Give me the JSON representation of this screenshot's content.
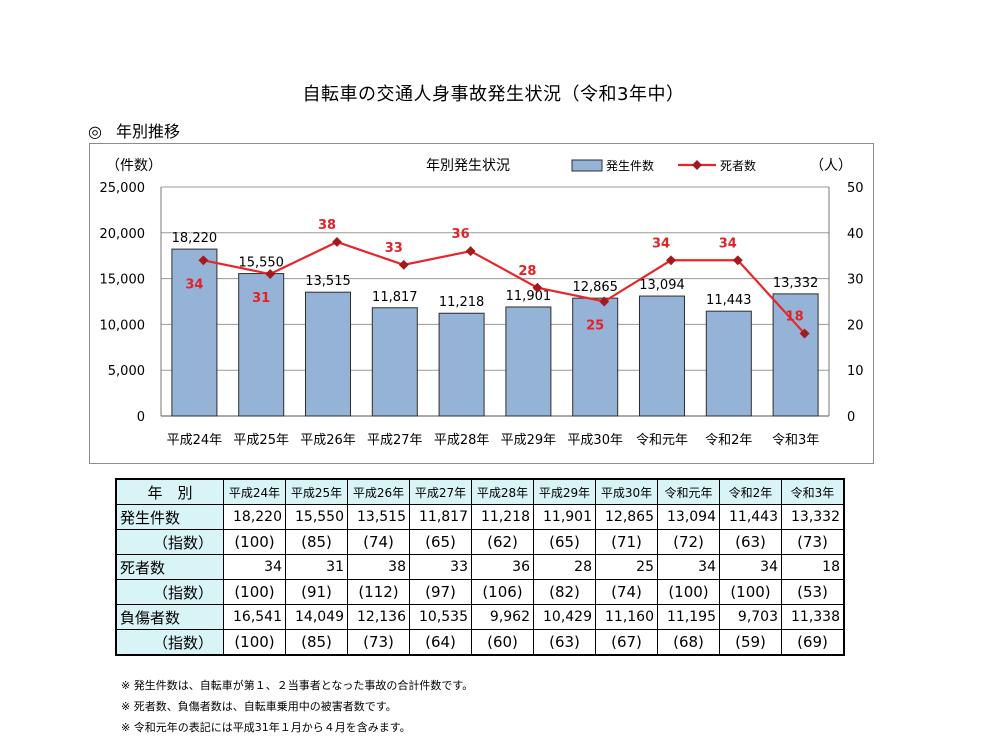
{
  "page_title": "自転車の交通人身事故発生状況（令和3年中）",
  "section": {
    "mark": "◎",
    "title": "年別推移"
  },
  "chart_data": {
    "type": "bar+line",
    "title": "年別発生状況",
    "left_axis_label": "（件数）",
    "right_axis_label": "（人）",
    "left_ticks": [
      "25,000",
      "20,000",
      "15,000",
      "10,000",
      "5,000",
      "0"
    ],
    "right_ticks": [
      "50",
      "40",
      "30",
      "20",
      "10",
      "0"
    ],
    "ylim_left": [
      0,
      25000
    ],
    "ylim_right": [
      0,
      50
    ],
    "legend_position": "top-right",
    "colors": {
      "bar_fill": "#95b3d7",
      "bar_stroke": "#2d2d2d",
      "line": "#e8262a",
      "marker": "#a01a1e",
      "death_label": "#e32228"
    },
    "categories": [
      "平成24年",
      "平成25年",
      "平成26年",
      "平成27年",
      "平成28年",
      "平成29年",
      "平成30年",
      "令和元年",
      "令和2年",
      "令和3年"
    ],
    "series": [
      {
        "name": "発生件数",
        "axis": "left",
        "kind": "bar",
        "values": [
          18220,
          15550,
          13515,
          11817,
          11218,
          11901,
          12865,
          13094,
          11443,
          13332
        ],
        "labels": [
          "18,220",
          "15,550",
          "13,515",
          "11,817",
          "11,218",
          "11,901",
          "12,865",
          "13,094",
          "11,443",
          "13,332"
        ]
      },
      {
        "name": "死者数",
        "axis": "right",
        "kind": "line",
        "values": [
          34,
          31,
          38,
          33,
          36,
          28,
          25,
          34,
          34,
          18
        ],
        "labels": [
          "34",
          "31",
          "38",
          "33",
          "36",
          "28",
          "25",
          "34",
          "34",
          "18"
        ]
      }
    ]
  },
  "table": {
    "corner": "年　別",
    "years": [
      "平成24年",
      "平成25年",
      "平成26年",
      "平成27年",
      "平成28年",
      "平成29年",
      "平成30年",
      "令和元年",
      "令和2年",
      "令和3年"
    ],
    "rows": [
      {
        "label": "発生件数",
        "sub": "（指数）",
        "values": [
          "18,220",
          "15,550",
          "13,515",
          "11,817",
          "11,218",
          "11,901",
          "12,865",
          "13,094",
          "11,443",
          "13,332"
        ],
        "index": [
          "(100)",
          "(85)",
          "(74)",
          "(65)",
          "(62)",
          "(65)",
          "(71)",
          "(72)",
          "(63)",
          "(73)"
        ]
      },
      {
        "label": "死者数",
        "sub": "（指数）",
        "values": [
          "34",
          "31",
          "38",
          "33",
          "36",
          "28",
          "25",
          "34",
          "34",
          "18"
        ],
        "index": [
          "(100)",
          "(91)",
          "(112)",
          "(97)",
          "(106)",
          "(82)",
          "(74)",
          "(100)",
          "(100)",
          "(53)"
        ]
      },
      {
        "label": "負傷者数",
        "sub": "（指数）",
        "values": [
          "16,541",
          "14,049",
          "12,136",
          "10,535",
          "9,962",
          "10,429",
          "11,160",
          "11,195",
          "9,703",
          "11,338"
        ],
        "index": [
          "(100)",
          "(85)",
          "(73)",
          "(64)",
          "(60)",
          "(63)",
          "(67)",
          "(68)",
          "(59)",
          "(69)"
        ]
      }
    ]
  },
  "notes": [
    "※ 発生件数は、自転車が第１、２当事者となった事故の合計件数です。",
    "※ 死者数、負傷者数は、自転車乗用中の被害者数です。",
    "※ 令和元年の表記には平成31年１月から４月を含みます。"
  ]
}
